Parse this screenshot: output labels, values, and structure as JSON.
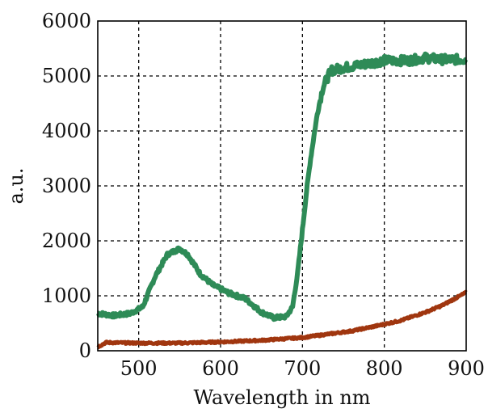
{
  "chart_data": {
    "type": "line",
    "xlabel": "Wavelength in nm",
    "ylabel": "a.u.",
    "xlim": [
      450,
      900
    ],
    "ylim": [
      0,
      6000
    ],
    "xticks": [
      500,
      600,
      700,
      800,
      900
    ],
    "yticks": [
      0,
      1000,
      2000,
      3000,
      4000,
      5000,
      6000
    ],
    "grid": true,
    "series": [
      {
        "color": "#2e8b57",
        "x": [
          450,
          470,
          490,
          505,
          520,
          535,
          550,
          560,
          575,
          590,
          610,
          630,
          650,
          665,
          680,
          688,
          694,
          700,
          705,
          710,
          718,
          725,
          735,
          750,
          770,
          800,
          830,
          850,
          870,
          900
        ],
        "y": [
          680,
          640,
          680,
          800,
          1350,
          1750,
          1860,
          1750,
          1400,
          1200,
          1050,
          950,
          700,
          600,
          620,
          800,
          1400,
          2200,
          2900,
          3500,
          4300,
          4800,
          5100,
          5150,
          5200,
          5280,
          5280,
          5330,
          5300,
          5300
        ]
      },
      {
        "color": "#a0360f",
        "x": [
          450,
          460,
          500,
          550,
          600,
          650,
          700,
          730,
          760,
          790,
          820,
          850,
          870,
          890,
          900
        ],
        "y": [
          70,
          150,
          140,
          140,
          160,
          190,
          240,
          300,
          360,
          450,
          550,
          700,
          820,
          980,
          1060
        ]
      }
    ]
  }
}
